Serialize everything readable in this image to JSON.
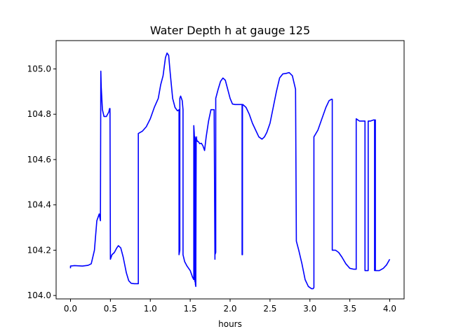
{
  "chart_data": {
    "type": "line",
    "title": "Water Depth h at gauge 125",
    "xlabel": "hours",
    "ylabel": "",
    "xlim": [
      -0.18,
      4.18
    ],
    "ylim": [
      103.985,
      105.125
    ],
    "xticks": [
      0.0,
      0.5,
      1.0,
      1.5,
      2.0,
      2.5,
      3.0,
      3.5,
      4.0
    ],
    "xtick_labels": [
      "0.0",
      "0.5",
      "1.0",
      "1.5",
      "2.0",
      "2.5",
      "3.0",
      "3.5",
      "4.0"
    ],
    "yticks": [
      104.0,
      104.2,
      104.4,
      104.6,
      104.8,
      105.0
    ],
    "ytick_labels": [
      "104.0",
      "104.2",
      "104.4",
      "104.6",
      "104.8",
      "105.0"
    ],
    "grid": false,
    "legend": "none",
    "series": [
      {
        "color": "#0000ff",
        "x": [
          0.0,
          0.0,
          0.05,
          0.15,
          0.22,
          0.26,
          0.3,
          0.33,
          0.36,
          0.375,
          0.38,
          0.385,
          0.4,
          0.42,
          0.45,
          0.48,
          0.49,
          0.495,
          0.5,
          0.52,
          0.55,
          0.58,
          0.6,
          0.63,
          0.66,
          0.7,
          0.73,
          0.76,
          0.8,
          0.85,
          0.85,
          0.9,
          0.95,
          1.0,
          1.05,
          1.1,
          1.13,
          1.16,
          1.19,
          1.21,
          1.23,
          1.25,
          1.28,
          1.31,
          1.34,
          1.36,
          1.36,
          1.37,
          1.37,
          1.38,
          1.4,
          1.41,
          1.41,
          1.43,
          1.46,
          1.5,
          1.53,
          1.545,
          1.545,
          1.55,
          1.555,
          1.555,
          1.56,
          1.56,
          1.565,
          1.565,
          1.57,
          1.575,
          1.575,
          1.58,
          1.58,
          1.59,
          1.6,
          1.62,
          1.64,
          1.66,
          1.68,
          1.7,
          1.73,
          1.76,
          1.78,
          1.8,
          1.81,
          1.81,
          1.82,
          1.82,
          1.85,
          1.88,
          1.91,
          1.94,
          1.97,
          2.0,
          2.03,
          2.06,
          2.09,
          2.12,
          2.15,
          2.15,
          2.155,
          2.155,
          2.16,
          2.2,
          2.24,
          2.28,
          2.32,
          2.36,
          2.4,
          2.43,
          2.46,
          2.5,
          2.54,
          2.58,
          2.62,
          2.66,
          2.7,
          2.74,
          2.78,
          2.82,
          2.82,
          2.83,
          2.86,
          2.9,
          2.94,
          2.98,
          3.02,
          3.04,
          3.05,
          3.05,
          3.1,
          3.15,
          3.2,
          3.24,
          3.27,
          3.28,
          3.28,
          3.32,
          3.36,
          3.4,
          3.45,
          3.5,
          3.55,
          3.58,
          3.58,
          3.62,
          3.66,
          3.69,
          3.69,
          3.73,
          3.73,
          3.76,
          3.8,
          3.81,
          3.81,
          3.82,
          3.82,
          3.87,
          3.92,
          3.96,
          4.0
        ],
        "y": [
          104.12,
          104.13,
          104.132,
          104.13,
          104.133,
          104.14,
          104.2,
          104.33,
          104.36,
          104.33,
          104.99,
          104.92,
          104.82,
          104.79,
          104.79,
          104.81,
          104.825,
          104.825,
          104.16,
          104.18,
          104.19,
          104.21,
          104.22,
          104.21,
          104.17,
          104.1,
          104.065,
          104.054,
          104.052,
          104.052,
          104.715,
          104.725,
          104.745,
          104.78,
          104.83,
          104.87,
          104.93,
          104.97,
          105.05,
          105.07,
          105.06,
          104.98,
          104.87,
          104.83,
          104.815,
          104.82,
          104.18,
          104.2,
          104.87,
          104.88,
          104.86,
          104.82,
          104.18,
          104.15,
          104.13,
          104.11,
          104.08,
          104.07,
          104.75,
          104.72,
          104.68,
          104.09,
          104.06,
          104.7,
          104.69,
          104.05,
          104.04,
          104.69,
          104.68,
          104.7,
          104.69,
          104.68,
          104.68,
          104.67,
          104.672,
          104.66,
          104.64,
          104.7,
          104.77,
          104.82,
          104.82,
          104.82,
          104.16,
          104.18,
          104.19,
          104.87,
          104.91,
          104.945,
          104.96,
          104.95,
          104.91,
          104.87,
          104.845,
          104.843,
          104.843,
          104.843,
          104.843,
          104.18,
          104.18,
          104.843,
          104.843,
          104.83,
          104.8,
          104.76,
          104.73,
          104.7,
          104.69,
          104.7,
          104.72,
          104.76,
          104.83,
          104.9,
          104.96,
          104.978,
          104.98,
          104.984,
          104.97,
          104.91,
          104.91,
          104.24,
          104.2,
          104.14,
          104.07,
          104.04,
          104.03,
          104.03,
          104.035,
          104.7,
          104.73,
          104.78,
          104.83,
          104.86,
          104.866,
          104.866,
          104.2,
          104.2,
          104.19,
          104.17,
          104.14,
          104.12,
          104.116,
          104.116,
          104.78,
          104.77,
          104.77,
          104.77,
          104.11,
          104.11,
          104.77,
          104.77,
          104.775,
          104.775,
          104.11,
          104.775,
          104.11,
          104.11,
          104.12,
          104.135,
          104.16
        ]
      }
    ]
  }
}
